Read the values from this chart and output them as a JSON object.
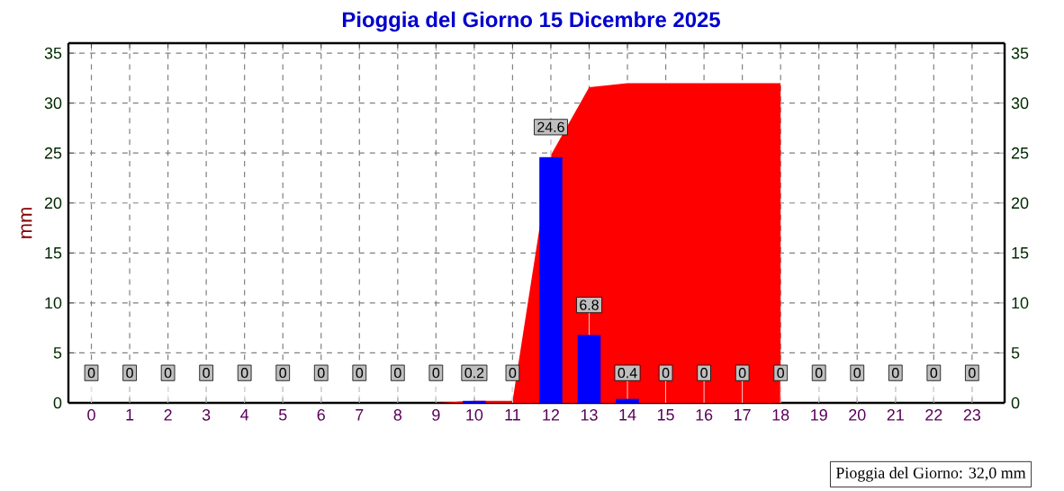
{
  "chart_data": {
    "type": "bar",
    "title": "Pioggia del Giorno 15 Dicembre 2025",
    "ylabel": "mm",
    "categories": [
      "0",
      "1",
      "2",
      "3",
      "4",
      "5",
      "6",
      "7",
      "8",
      "9",
      "10",
      "11",
      "12",
      "13",
      "14",
      "15",
      "16",
      "17",
      "18",
      "19",
      "20",
      "21",
      "22",
      "23"
    ],
    "series": [
      {
        "type": "area",
        "color": "#ff0000",
        "values": [
          0,
          0,
          0,
          0,
          0,
          0,
          0,
          0,
          0,
          0,
          0.2,
          0.2,
          24.8,
          31.6,
          32,
          32,
          32,
          32,
          32,
          null,
          null,
          null,
          null,
          null
        ]
      },
      {
        "color": "#0000ff",
        "values": [
          0,
          0,
          0,
          0,
          0,
          0,
          0,
          0,
          0,
          0,
          0.2,
          0,
          24.6,
          6.8,
          0.4,
          0,
          0,
          0,
          0,
          0,
          0,
          0,
          0,
          0
        ],
        "value_labels": [
          "0",
          "0",
          "0",
          "0",
          "0",
          "0",
          "0",
          "0",
          "0",
          "0",
          "0.2",
          "0",
          "24.6",
          "6.8",
          "0.4",
          "0",
          "0",
          "0",
          "0",
          "0",
          "0",
          "0",
          "0",
          "0"
        ]
      }
    ],
    "ylim": [
      0,
      36
    ],
    "yticks": [
      0,
      5,
      10,
      15,
      20,
      25,
      30,
      35
    ],
    "y2lim": [
      0,
      36
    ],
    "y2ticks": [
      0,
      5,
      10,
      15,
      20,
      25,
      30,
      35
    ],
    "grid": true,
    "annotations": [
      "Pioggia del Giorno: 32,0 mm"
    ]
  }
}
